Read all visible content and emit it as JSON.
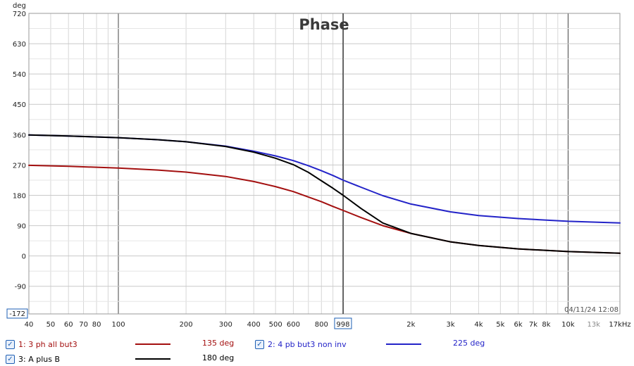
{
  "chart_data": {
    "type": "line",
    "title": "Phase",
    "ylabel": "deg",
    "xlabel": "",
    "x_scale": "log",
    "xlim": [
      40,
      17000
    ],
    "ylim": [
      -172,
      720
    ],
    "y_ticks": [
      "720",
      "630",
      "540",
      "450",
      "360",
      "270",
      "180",
      "90",
      "0",
      "-90"
    ],
    "y_min_label": "-172",
    "x_tick_labels": [
      {
        "v": 40,
        "t": "40"
      },
      {
        "v": 50,
        "t": "50"
      },
      {
        "v": 60,
        "t": "60"
      },
      {
        "v": 70,
        "t": "70"
      },
      {
        "v": 80,
        "t": "80"
      },
      {
        "v": 100,
        "t": "100"
      },
      {
        "v": 200,
        "t": "200"
      },
      {
        "v": 300,
        "t": "300"
      },
      {
        "v": 400,
        "t": "400"
      },
      {
        "v": 500,
        "t": "500"
      },
      {
        "v": 600,
        "t": "600"
      },
      {
        "v": 800,
        "t": "800"
      },
      {
        "v": 2000,
        "t": "2k"
      },
      {
        "v": 3000,
        "t": "3k"
      },
      {
        "v": 4000,
        "t": "4k"
      },
      {
        "v": 5000,
        "t": "5k"
      },
      {
        "v": 6000,
        "t": "6k"
      },
      {
        "v": 7000,
        "t": "7k"
      },
      {
        "v": 8000,
        "t": "8k"
      },
      {
        "v": 10000,
        "t": "10k"
      },
      {
        "v": 13000,
        "t": "13k"
      },
      {
        "v": 17000,
        "t": "17kHz"
      }
    ],
    "cursor": {
      "x": 998,
      "label": "998"
    },
    "timestamp": "04/11/24 12:08",
    "grid": true,
    "series": [
      {
        "name": "1: 3 ph all but3",
        "color": "#a30f0f",
        "cursor_value": "135 deg",
        "x": [
          40,
          60,
          100,
          150,
          200,
          300,
          400,
          500,
          600,
          700,
          800,
          900,
          1000,
          1200,
          1500,
          2000,
          3000,
          4000,
          6000,
          10000,
          17000
        ],
        "y": [
          269,
          266,
          261,
          255,
          249,
          236,
          221,
          206,
          191,
          175,
          161,
          147,
          135,
          114,
          90,
          67,
          42,
          31,
          21,
          13,
          8
        ]
      },
      {
        "name": "2: 4 pb but3 non inv",
        "color": "#2323c8",
        "cursor_value": "225 deg",
        "x": [
          40,
          60,
          100,
          150,
          200,
          300,
          400,
          500,
          600,
          700,
          800,
          900,
          1000,
          1200,
          1500,
          2000,
          3000,
          4000,
          6000,
          10000,
          17000
        ],
        "y": [
          359,
          356,
          351,
          345,
          339,
          326,
          311,
          297,
          283,
          268,
          253,
          239,
          225,
          204,
          179,
          154,
          131,
          120,
          111,
          103,
          98
        ]
      },
      {
        "name": "3: A plus B",
        "color": "#000000",
        "cursor_value": "180 deg",
        "x": [
          40,
          60,
          100,
          150,
          200,
          300,
          400,
          500,
          600,
          700,
          800,
          900,
          1000,
          1200,
          1500,
          2000,
          3000,
          4000,
          6000,
          10000,
          17000
        ],
        "y": [
          359,
          356,
          351,
          345,
          339,
          325,
          308,
          290,
          271,
          248,
          223,
          201,
          180,
          141,
          98,
          67,
          42,
          31,
          21,
          13,
          8
        ]
      }
    ]
  }
}
